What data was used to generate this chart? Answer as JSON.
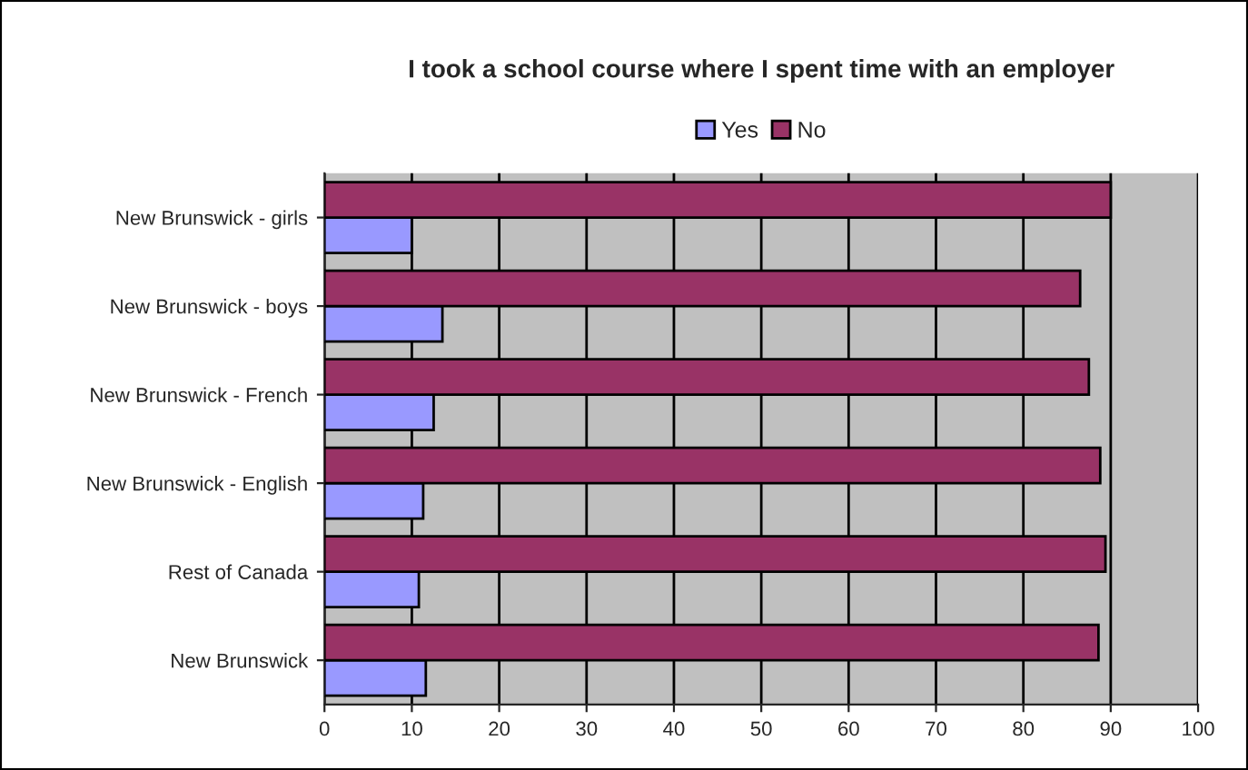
{
  "chart_data": {
    "type": "bar",
    "orientation": "horizontal",
    "title": "I took a school course where I spent time with an employer",
    "categories": [
      "New Brunswick - girls",
      "New Brunswick - boys",
      "New Brunswick - French",
      "New Brunswick - English",
      "Rest of Canada",
      "New Brunswick"
    ],
    "series": [
      {
        "name": "Yes",
        "color": "#9999ff",
        "values": [
          10.0,
          13.5,
          12.5,
          11.3,
          10.8,
          11.6
        ]
      },
      {
        "name": "No",
        "color": "#993366",
        "values": [
          90.0,
          86.5,
          87.5,
          88.8,
          89.4,
          88.6
        ]
      }
    ],
    "xlim": [
      0,
      100
    ],
    "xticks": [
      0,
      10,
      20,
      30,
      40,
      50,
      60,
      70,
      80,
      90,
      100
    ],
    "grid": "x",
    "legend": "top"
  }
}
